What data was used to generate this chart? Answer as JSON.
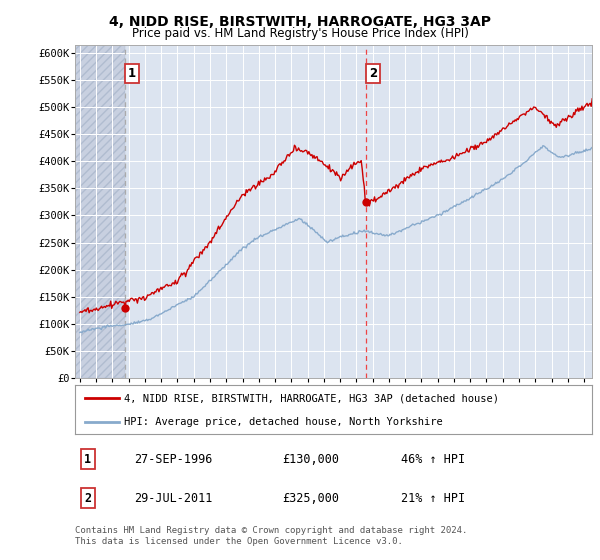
{
  "title": "4, NIDD RISE, BIRSTWITH, HARROGATE, HG3 3AP",
  "subtitle": "Price paid vs. HM Land Registry's House Price Index (HPI)",
  "ylabel_ticks": [
    "£0",
    "£50K",
    "£100K",
    "£150K",
    "£200K",
    "£250K",
    "£300K",
    "£350K",
    "£400K",
    "£450K",
    "£500K",
    "£550K",
    "£600K"
  ],
  "ytick_vals": [
    0,
    50000,
    100000,
    150000,
    200000,
    250000,
    300000,
    350000,
    400000,
    450000,
    500000,
    550000,
    600000
  ],
  "ylim": [
    0,
    615000
  ],
  "xlim_start": 1993.7,
  "xlim_end": 2025.5,
  "sale1_x": 1996.75,
  "sale1_y": 130000,
  "sale1_label": "1",
  "sale2_x": 2011.58,
  "sale2_y": 325000,
  "sale2_label": "2",
  "red_line_color": "#cc0000",
  "blue_line_color": "#88aacc",
  "sale1_dash_color": "#aaaaaa",
  "sale2_dash_color": "#ee4444",
  "background_color": "#ffffff",
  "plot_bg_color": "#dce4f0",
  "grid_color": "#ffffff",
  "hatch_color": "#c8d0e0",
  "legend_label_red": "4, NIDD RISE, BIRSTWITH, HARROGATE, HG3 3AP (detached house)",
  "legend_label_blue": "HPI: Average price, detached house, North Yorkshire",
  "table_row1": [
    "1",
    "27-SEP-1996",
    "£130,000",
    "46% ↑ HPI"
  ],
  "table_row2": [
    "2",
    "29-JUL-2011",
    "£325,000",
    "21% ↑ HPI"
  ],
  "footer": "Contains HM Land Registry data © Crown copyright and database right 2024.\nThis data is licensed under the Open Government Licence v3.0.",
  "xticks": [
    1994,
    1995,
    1996,
    1997,
    1998,
    1999,
    2000,
    2001,
    2002,
    2003,
    2004,
    2005,
    2006,
    2007,
    2008,
    2009,
    2010,
    2011,
    2012,
    2013,
    2014,
    2015,
    2016,
    2017,
    2018,
    2019,
    2020,
    2021,
    2022,
    2023,
    2024,
    2025
  ]
}
